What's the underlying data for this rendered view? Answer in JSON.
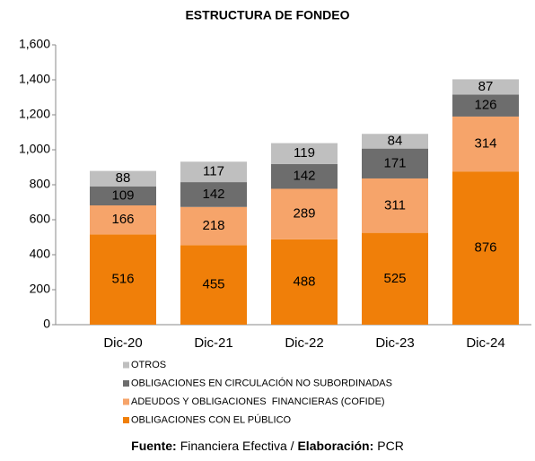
{
  "chart_data": {
    "type": "stacked_bar",
    "title": "ESTRUCTURA DE FONDEO",
    "categories": [
      "Dic-20",
      "Dic-21",
      "Dic-22",
      "Dic-23",
      "Dic-24"
    ],
    "series": [
      {
        "name": "OBLIGACIONES CON EL PÚBLICO",
        "color": "#f07f09",
        "values": [
          516,
          455,
          488,
          525,
          876
        ]
      },
      {
        "name": "ADEUDOS Y OBLIGACIONES  FINANCIERAS (COFIDE)",
        "color": "#f6a46a",
        "values": [
          166,
          218,
          289,
          311,
          314
        ]
      },
      {
        "name": "OBLIGACIONES EN CIRCULACIÓN NO SUBORDINADAS",
        "color": "#6d6d6d",
        "values": [
          109,
          142,
          142,
          171,
          126
        ]
      },
      {
        "name": "OTROS",
        "color": "#bfbfbf",
        "values": [
          88,
          117,
          119,
          84,
          87
        ]
      }
    ],
    "ylim": [
      0,
      1600
    ],
    "yticks": [
      0,
      200,
      400,
      600,
      800,
      {
        "value": 1000,
        "label": "1,000"
      },
      {
        "value": 1200,
        "label": "1,200"
      },
      {
        "value": 1400,
        "label": "1,400"
      },
      {
        "value": 1600,
        "label": "1,600"
      }
    ],
    "legend": "bottom",
    "footer": {
      "source_label": "Fuente:",
      "source": "Financiera Efectiva / ",
      "elaboration_label": "Elaboración:",
      "elaboration": "PCR"
    }
  }
}
